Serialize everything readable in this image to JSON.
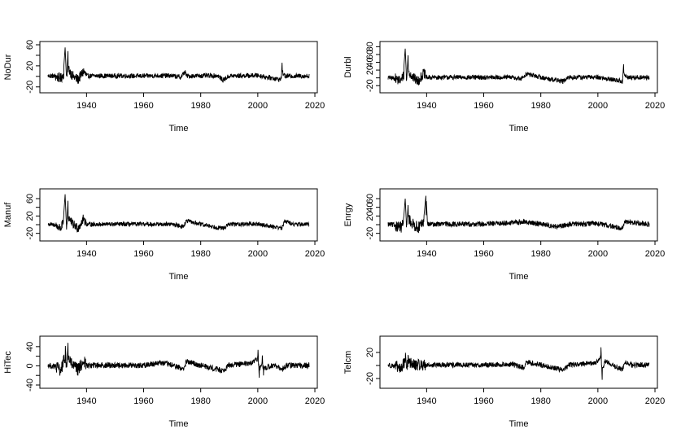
{
  "chart_data": [
    {
      "type": "line",
      "ylabel": "NoDur",
      "xlabel": "Time",
      "xlim": [
        1926.5,
        2018
      ],
      "xticks": [
        1940,
        1960,
        1980,
        2000,
        2020
      ],
      "ylim": [
        -25,
        60
      ],
      "yticks": [
        -20,
        20,
        60
      ],
      "yminor": [
        0,
        40
      ],
      "x_start": 1926.5,
      "x_end": 2018,
      "noise_amp": 4.5,
      "segments": [
        {
          "x": [
            1926.5,
            1929,
            1931,
            1932,
            1932.5,
            1933,
            1933.5,
            1935,
            1937,
            1939,
            1940,
            1945,
            1960,
            1965,
            1970,
            1973,
            1974.5,
            1975,
            1980,
            1986,
            1987.8,
            1990,
            2000,
            2008,
            2008.5,
            2009.5,
            2012,
            2018
          ],
          "y": [
            3,
            1,
            -12,
            15,
            55,
            -8,
            48,
            4,
            -18,
            28,
            2,
            3,
            2,
            4,
            3,
            -5,
            26,
            2,
            3,
            4,
            -21,
            2,
            5,
            -18,
            26,
            1,
            2,
            2
          ]
        }
      ]
    },
    {
      "type": "line",
      "ylabel": "Durbl",
      "xlabel": "Time",
      "xlim": [
        1926.5,
        2018
      ],
      "xticks": [
        1940,
        1960,
        1980,
        2000,
        2020
      ],
      "ylim": [
        -30,
        85
      ],
      "yticks": [
        -20,
        20,
        40,
        60,
        80
      ],
      "yminor": [
        0
      ],
      "x_start": 1926.5,
      "x_end": 2018,
      "noise_amp": 6,
      "segments": [
        {
          "x": [
            1926.5,
            1929,
            1931,
            1932,
            1932.5,
            1933,
            1933.5,
            1935,
            1937,
            1939,
            1940,
            1945,
            1960,
            1970,
            1973,
            1975,
            1980,
            1987.8,
            1990,
            2000,
            2008.5,
            2009,
            2010,
            2018
          ],
          "y": [
            2,
            -5,
            -22,
            25,
            75,
            -10,
            58,
            6,
            -25,
            35,
            2,
            4,
            3,
            4,
            -10,
            30,
            3,
            -25,
            4,
            5,
            -25,
            35,
            3,
            2
          ]
        }
      ]
    },
    {
      "type": "line",
      "ylabel": "Manuf",
      "xlabel": "Time",
      "xlim": [
        1926.5,
        2018
      ],
      "xticks": [
        1940,
        1960,
        1980,
        2000,
        2020
      ],
      "ylim": [
        -30,
        75
      ],
      "yticks": [
        -20,
        20,
        60
      ],
      "yminor": [
        0,
        40
      ],
      "x_start": 1926.5,
      "x_end": 2018,
      "noise_amp": 5,
      "segments": [
        {
          "x": [
            1926.5,
            1929,
            1931,
            1932,
            1932.5,
            1933,
            1933.5,
            1935,
            1937,
            1939,
            1940,
            1945,
            1960,
            1970,
            1974,
            1975,
            1980,
            1987.8,
            1990,
            2000,
            2008.5,
            2009.5,
            2012,
            2018
          ],
          "y": [
            3,
            -3,
            -25,
            22,
            70,
            -12,
            55,
            5,
            -22,
            40,
            2,
            3,
            3,
            3,
            -12,
            25,
            3,
            -25,
            3,
            4,
            -22,
            28,
            2,
            2
          ]
        }
      ]
    },
    {
      "type": "line",
      "ylabel": "Enrgy",
      "xlabel": "Time",
      "xlim": [
        1926.5,
        2018
      ],
      "xticks": [
        1940,
        1960,
        1980,
        2000,
        2020
      ],
      "ylim": [
        -30,
        75
      ],
      "yticks": [
        -20,
        20,
        40,
        60
      ],
      "yminor": [
        0
      ],
      "x_start": 1926.5,
      "x_end": 2018,
      "noise_amp": 6,
      "segments": [
        {
          "x": [
            1926.5,
            1929,
            1931,
            1932,
            1932.5,
            1933,
            1933.5,
            1935,
            1937,
            1939,
            1939.8,
            1940.3,
            1945,
            1960,
            1974,
            1980,
            1986,
            1990,
            2000,
            2008.5,
            2009.5,
            2016,
            2018
          ],
          "y": [
            3,
            -4,
            -20,
            18,
            60,
            -10,
            45,
            5,
            -20,
            15,
            70,
            2,
            4,
            3,
            18,
            5,
            -15,
            3,
            8,
            -25,
            20,
            5,
            3
          ]
        }
      ]
    },
    {
      "type": "line",
      "ylabel": "HiTec",
      "xlabel": "Time",
      "xlim": [
        1926.5,
        2018
      ],
      "xticks": [
        1940,
        1960,
        1980,
        2000,
        2020
      ],
      "ylim": [
        -40,
        55
      ],
      "yticks": [
        -40,
        0,
        40
      ],
      "yminor": [
        -20,
        20
      ],
      "x_start": 1926.5,
      "x_end": 2018,
      "noise_amp": 6,
      "segments": [
        {
          "x": [
            1926.5,
            1929,
            1931,
            1932,
            1932.5,
            1933,
            1933.5,
            1935,
            1937,
            1939,
            1940,
            1945,
            1960,
            1966,
            1970,
            1974,
            1975,
            1980,
            1987.8,
            1990,
            1998,
            2000,
            2000.5,
            2001.5,
            2002,
            2005,
            2008.5,
            2010,
            2018
          ],
          "y": [
            3,
            -5,
            -28,
            25,
            52,
            -12,
            48,
            5,
            -25,
            28,
            2,
            4,
            3,
            20,
            4,
            -20,
            25,
            3,
            -28,
            5,
            15,
            45,
            -25,
            30,
            -20,
            5,
            -22,
            3,
            2
          ]
        }
      ]
    },
    {
      "type": "line",
      "ylabel": "Telcm",
      "xlabel": "Time",
      "xlim": [
        1926.5,
        2018
      ],
      "xticks": [
        1940,
        1960,
        1980,
        2000,
        2020
      ],
      "ylim": [
        -30,
        40
      ],
      "yticks": [
        -20,
        20
      ],
      "yminor": [
        0
      ],
      "x_start": 1926.5,
      "x_end": 2018,
      "noise_amp": 4,
      "segments": [
        {
          "x": [
            1926.5,
            1929,
            1931,
            1932,
            1932.5,
            1933,
            1933.5,
            1935,
            1940,
            1960,
            1970,
            1974,
            1975,
            1980,
            1987.8,
            1990,
            1998,
            2000,
            2001,
            2001.5,
            2002.5,
            2005,
            2008.5,
            2009.5,
            2012,
            2018
          ],
          "y": [
            2,
            -2,
            -18,
            10,
            25,
            -8,
            22,
            3,
            2,
            2,
            5,
            -10,
            15,
            3,
            -20,
            3,
            10,
            15,
            38,
            -22,
            20,
            3,
            -18,
            15,
            2,
            2
          ]
        }
      ]
    }
  ]
}
